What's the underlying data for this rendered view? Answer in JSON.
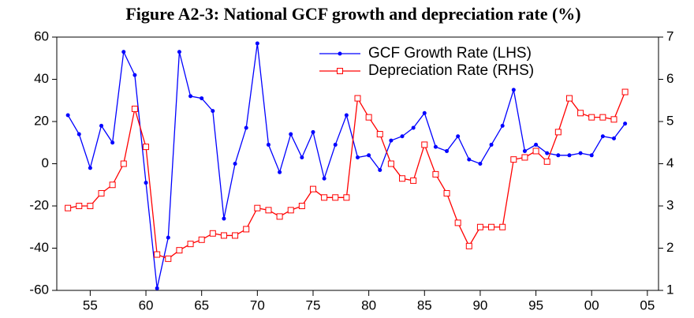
{
  "chart_data": {
    "type": "line",
    "title": "Figure A2-3:    National GCF growth and depreciation rate (%)",
    "x": [
      1953,
      1954,
      1955,
      1956,
      1957,
      1958,
      1959,
      1960,
      1961,
      1962,
      1963,
      1964,
      1965,
      1966,
      1967,
      1968,
      1969,
      1970,
      1971,
      1972,
      1973,
      1974,
      1975,
      1976,
      1977,
      1978,
      1979,
      1980,
      1981,
      1982,
      1983,
      1984,
      1985,
      1986,
      1987,
      1988,
      1989,
      1990,
      1991,
      1992,
      1993,
      1994,
      1995,
      1996,
      1997,
      1998,
      1999,
      2000,
      2001,
      2002,
      2003
    ],
    "series": [
      {
        "name": "GCF Growth Rate (LHS)",
        "color": "#0000ff",
        "marker": "circle",
        "values": [
          23,
          14,
          -2,
          18,
          10,
          53,
          42,
          -9,
          -59,
          -35,
          53,
          32,
          31,
          25,
          -26,
          0,
          17,
          57,
          9,
          -4,
          14,
          3,
          15,
          -7,
          9,
          23,
          3,
          4,
          -3,
          11,
          13,
          17,
          24,
          8,
          6,
          13,
          2,
          0,
          9,
          18,
          35,
          6,
          9,
          5,
          4,
          4,
          5,
          4,
          13,
          12,
          19
        ]
      },
      {
        "name": "Depreciation Rate (RHS)",
        "color": "#ff0000",
        "marker": "square",
        "axis": "y2",
        "values": [
          2.95,
          3.0,
          3.0,
          3.3,
          3.5,
          4.0,
          5.3,
          4.4,
          1.85,
          1.75,
          1.95,
          2.1,
          2.2,
          2.35,
          2.3,
          2.3,
          2.45,
          2.95,
          2.9,
          2.75,
          2.9,
          3.0,
          3.4,
          3.2,
          3.2,
          3.2,
          5.55,
          5.1,
          4.7,
          4.0,
          3.65,
          3.6,
          4.45,
          3.75,
          3.3,
          2.6,
          2.05,
          2.5,
          2.5,
          2.5,
          4.1,
          4.15,
          4.3,
          4.05,
          4.75,
          5.55,
          5.2,
          5.1,
          5.1,
          5.05,
          5.7
        ]
      }
    ],
    "xlim": [
      1952,
      2006
    ],
    "xticks": [
      {
        "value": 1955,
        "label": "55"
      },
      {
        "value": 1960,
        "label": "60"
      },
      {
        "value": 1965,
        "label": "65"
      },
      {
        "value": 1970,
        "label": "70"
      },
      {
        "value": 1975,
        "label": "75"
      },
      {
        "value": 1980,
        "label": "80"
      },
      {
        "value": 1985,
        "label": "85"
      },
      {
        "value": 1990,
        "label": "90"
      },
      {
        "value": 1995,
        "label": "95"
      },
      {
        "value": 2000,
        "label": "00"
      },
      {
        "value": 2005,
        "label": "05"
      }
    ],
    "ylim": [
      -60,
      60
    ],
    "yticks": [
      -60,
      -40,
      -20,
      0,
      20,
      40,
      60
    ],
    "y2lim": [
      1,
      7
    ],
    "y2ticks": [
      1,
      2,
      3,
      4,
      5,
      6,
      7
    ],
    "legend": "upper right"
  }
}
